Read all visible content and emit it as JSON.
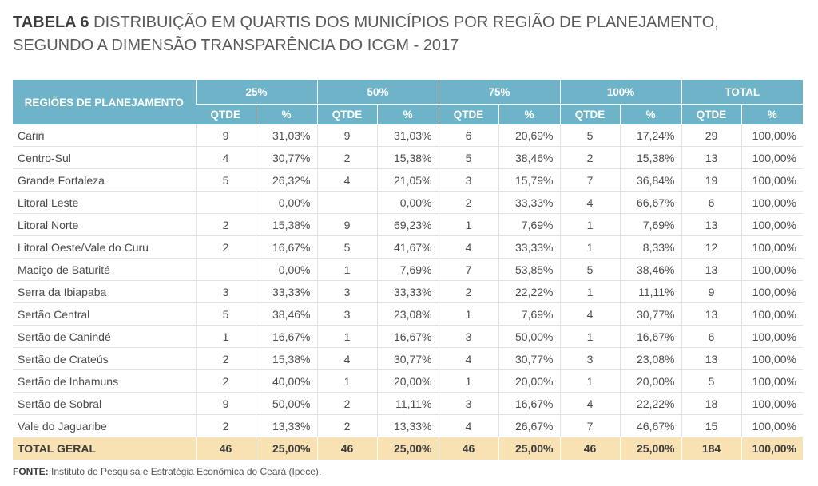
{
  "title": {
    "bold": "TABELA 6",
    "lines": [
      "DISTRIBUIÇÃO EM QUARTIS DOS MUNICÍPIOS POR REGIÃO DE PLANEJAMENTO,",
      "SEGUNDO A DIMENSÃO TRANSPARÊNCIA DO ICGM - 2017"
    ]
  },
  "table": {
    "region_header": "REGIÕES DE PLANEJAMENTO",
    "groups": [
      "25%",
      "50%",
      "75%",
      "100%",
      "TOTAL"
    ],
    "sub_headers": [
      "QTDE",
      "%"
    ],
    "rows": [
      [
        "Cariri",
        9,
        "31,03%",
        9,
        "31,03%",
        6,
        "20,69%",
        5,
        "17,24%",
        29,
        "100,00%"
      ],
      [
        "Centro-Sul",
        4,
        "30,77%",
        2,
        "15,38%",
        5,
        "38,46%",
        2,
        "15,38%",
        13,
        "100,00%"
      ],
      [
        "Grande Fortaleza",
        5,
        "26,32%",
        4,
        "21,05%",
        3,
        "15,79%",
        7,
        "36,84%",
        19,
        "100,00%"
      ],
      [
        "Litoral Leste",
        null,
        "0,00%",
        null,
        "0,00%",
        2,
        "33,33%",
        4,
        "66,67%",
        6,
        "100,00%"
      ],
      [
        "Litoral Norte",
        2,
        "15,38%",
        9,
        "69,23%",
        1,
        "7,69%",
        1,
        "7,69%",
        13,
        "100,00%"
      ],
      [
        "Litoral Oeste/Vale do Curu",
        2,
        "16,67%",
        5,
        "41,67%",
        4,
        "33,33%",
        1,
        "8,33%",
        12,
        "100,00%"
      ],
      [
        "Maciço de Baturité",
        null,
        "0,00%",
        1,
        "7,69%",
        7,
        "53,85%",
        5,
        "38,46%",
        13,
        "100,00%"
      ],
      [
        "Serra da Ibiapaba",
        3,
        "33,33%",
        3,
        "33,33%",
        2,
        "22,22%",
        1,
        "11,11%",
        9,
        "100,00%"
      ],
      [
        "Sertão Central",
        5,
        "38,46%",
        3,
        "23,08%",
        1,
        "7,69%",
        4,
        "30,77%",
        13,
        "100,00%"
      ],
      [
        "Sertão de Canindé",
        1,
        "16,67%",
        1,
        "16,67%",
        3,
        "50,00%",
        1,
        "16,67%",
        6,
        "100,00%"
      ],
      [
        "Sertão de Crateús",
        2,
        "15,38%",
        4,
        "30,77%",
        4,
        "30,77%",
        3,
        "23,08%",
        13,
        "100,00%"
      ],
      [
        "Sertão de Inhamuns",
        2,
        "40,00%",
        1,
        "20,00%",
        1,
        "20,00%",
        1,
        "20,00%",
        5,
        "100,00%"
      ],
      [
        "Sertão de Sobral",
        9,
        "50,00%",
        2,
        "11,11%",
        3,
        "16,67%",
        4,
        "22,22%",
        18,
        "100,00%"
      ],
      [
        "Vale do Jaguaribe",
        2,
        "13,33%",
        2,
        "13,33%",
        4,
        "26,67%",
        7,
        "46,67%",
        15,
        "100,00%"
      ]
    ],
    "total": [
      "TOTAL GERAL",
      46,
      "25,00%",
      46,
      "25,00%",
      46,
      "25,00%",
      46,
      "25,00%",
      184,
      "100,00%"
    ]
  },
  "footer": {
    "label": "FONTE:",
    "text": "Instituto de Pesquisa e Estratégia Econômica do Ceará (Ipece)."
  }
}
